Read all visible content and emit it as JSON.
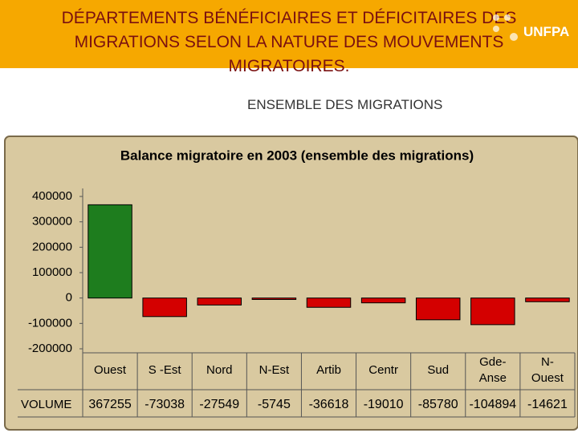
{
  "header": {
    "title": "DÉPARTEMENTS BÉNÉFICIAIRES ET DÉFICITAIRES DES MIGRATIONS SELON LA NATURE DES MOUVEMENTS MIGRATOIRES.",
    "subtitle": "ENSEMBLE DES MIGRATIONS",
    "logo": "UNFPA"
  },
  "chart_data": {
    "type": "bar",
    "title": "Balance migratoire en 2003 (ensemble des migrations)",
    "categories": [
      "Ouest",
      "S -Est",
      "Nord",
      "N-Est",
      "Artib",
      "Centr",
      "Sud",
      "Gde-\nAnse",
      "N-\nOuest"
    ],
    "values": [
      367255,
      -73038,
      -27549,
      -5745,
      -36618,
      -19010,
      -85780,
      -104894,
      -14621
    ],
    "positive_color": "#1e7d1e",
    "negative_color": "#d40000",
    "ylim": [
      -200000,
      400000
    ],
    "yticks": [
      -200000,
      -100000,
      0,
      100000,
      200000,
      300000,
      400000
    ],
    "table_row_label": "VOLUME"
  }
}
